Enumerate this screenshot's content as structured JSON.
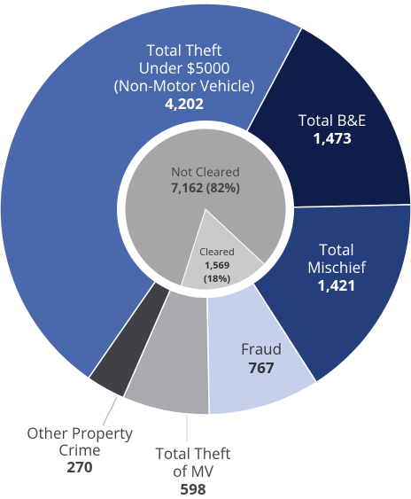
{
  "chart_data": {
    "type": "donut",
    "categories": [
      "Total B&E",
      "Total\nMischief",
      "Fraud",
      "Total Theft\nof MV",
      "Other Property\nCrime",
      "Total Theft\nUnder $5000\n(Non-Motor Vehicle)"
    ],
    "values": [
      1473,
      1421,
      767,
      598,
      270,
      4202
    ],
    "value_labels": [
      "1,473",
      "1,421",
      "767",
      "598",
      "270",
      "4,202"
    ],
    "colors": [
      "#0f1d4a",
      "#253f7c",
      "#c5d1ec",
      "#a9aaad",
      "#404144",
      "#4a69ad"
    ],
    "inner": {
      "categories": [
        "Cleared",
        "Not Cleared"
      ],
      "values": [
        1569,
        7162
      ],
      "value_labels": [
        "1,569\n(18%)",
        "7,162 (82%)"
      ],
      "colors": [
        "#cacacc",
        "#a6a6a8"
      ]
    }
  }
}
